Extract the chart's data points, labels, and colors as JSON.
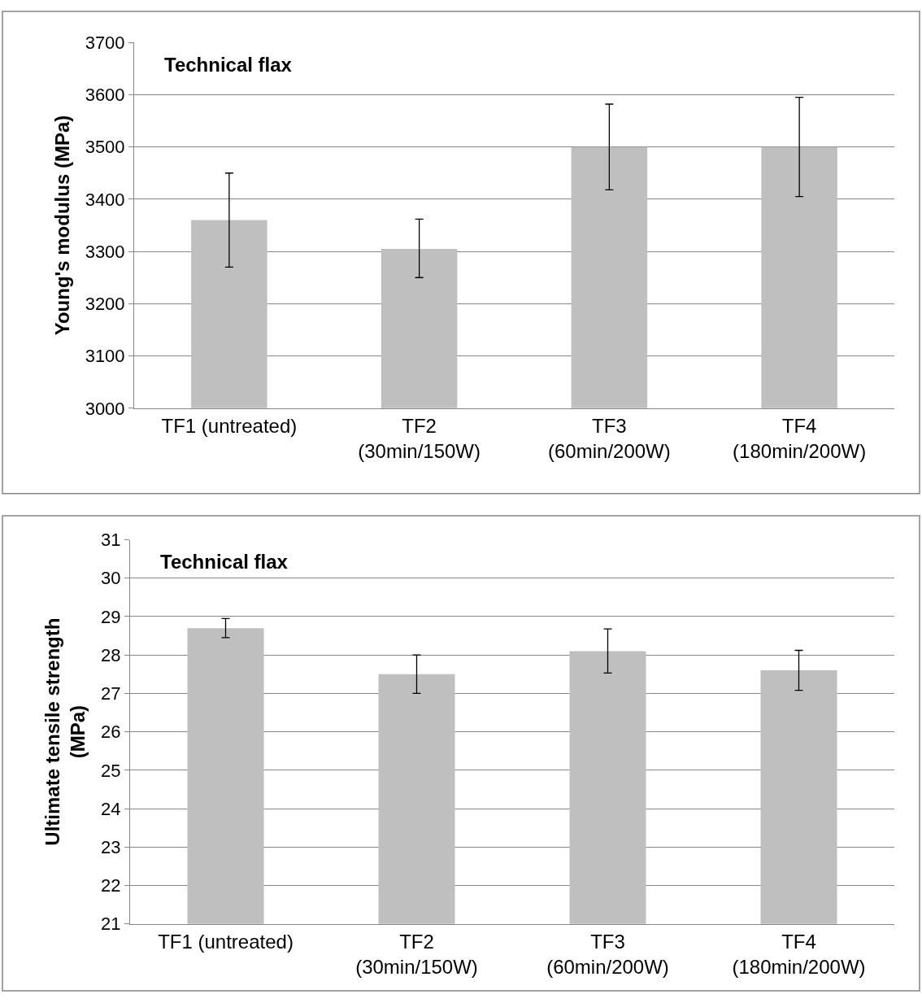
{
  "chart_data": [
    {
      "type": "bar",
      "title": "Technical flax",
      "ylabel": "Young's modulus (MPa)",
      "categories": [
        "TF1 (untreated)",
        "TF2 (30min/150W)",
        "TF3 (60min/200W)",
        "TF4 (180min/200W)"
      ],
      "series": [
        {
          "color": "#bfbfbf",
          "values": [
            3360,
            3305,
            3500,
            3500
          ],
          "errors": [
            [
              3270,
              3450
            ],
            [
              3250,
              3362
            ],
            [
              3418,
              3582
            ],
            [
              3405,
              3595
            ]
          ]
        }
      ],
      "ylim": [
        3000,
        3700
      ],
      "yticks": [
        3000,
        3100,
        3200,
        3300,
        3400,
        3500,
        3600,
        3700
      ],
      "grid": "y"
    },
    {
      "type": "bar",
      "title": "Technical flax",
      "ylabel": "Ultimate tensile strength (MPa)",
      "categories": [
        "TF1 (untreated)",
        "TF2 (30min/150W)",
        "TF3 (60min/200W)",
        "TF4 (180min/200W)"
      ],
      "series": [
        {
          "color": "#bfbfbf",
          "values": [
            28.7,
            27.5,
            28.1,
            27.6
          ],
          "errors": [
            [
              28.45,
              28.95
            ],
            [
              27.0,
              28.0
            ],
            [
              27.53,
              28.68
            ],
            [
              27.08,
              28.12
            ]
          ]
        }
      ],
      "ylim": [
        21,
        31
      ],
      "yticks": [
        21,
        22,
        23,
        24,
        25,
        26,
        27,
        28,
        29,
        30,
        31
      ],
      "grid": "y"
    }
  ]
}
